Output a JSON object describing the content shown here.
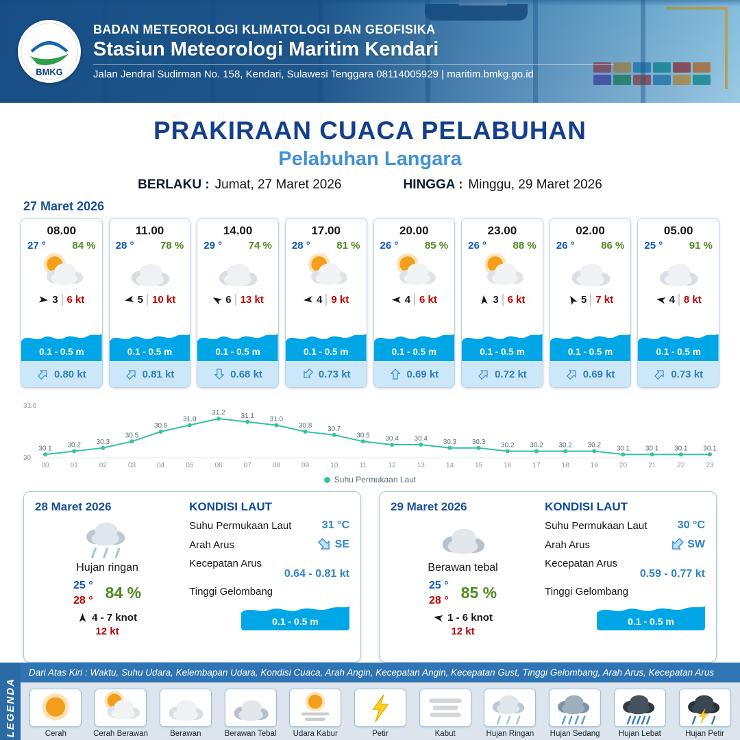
{
  "header": {
    "logo_text": "BMKG",
    "org": "BADAN METEOROLOGI KLIMATOLOGI DAN GEOFISIKA",
    "station": "Stasiun Meteorologi Maritim Kendari",
    "address": "Jalan Jendral Sudirman No. 158, Kendari, Sulawesi Tenggara  08114005929 | maritim.bmkg.go.id"
  },
  "title": {
    "main": "PRAKIRAAN CUACA PELABUHAN",
    "port": "Pelabuhan Langara",
    "valid_from_label": "BERLAKU :",
    "valid_from": "Jumat, 27 Maret 2026",
    "valid_to_label": "HINGGA :",
    "valid_to": "Minggu, 29 Maret 2026"
  },
  "forecast": {
    "date": "27 Maret 2026",
    "cards": [
      {
        "time": "08.00",
        "temp": "27 °",
        "humidity": "84 %",
        "icon": "cerah-berawan",
        "wind_speed": "3",
        "gust": "6 kt",
        "wind_rot": 95,
        "wave": "0.1 - 0.5 m",
        "current": "0.80 kt",
        "current_rot": 45
      },
      {
        "time": "11.00",
        "temp": "28 °",
        "humidity": "78 %",
        "icon": "berawan",
        "wind_speed": "5",
        "gust": "10 kt",
        "wind_rot": 260,
        "wave": "0.1 - 0.5 m",
        "current": "0.81 kt",
        "current_rot": 45
      },
      {
        "time": "14.00",
        "temp": "29 °",
        "humidity": "74 %",
        "icon": "berawan",
        "wind_speed": "6",
        "gust": "13 kt",
        "wind_rot": 300,
        "wave": "0.1 - 0.5 m",
        "current": "0.68 kt",
        "current_rot": 180
      },
      {
        "time": "17.00",
        "temp": "28 °",
        "humidity": "81 %",
        "icon": "cerah-berawan",
        "wind_speed": "4",
        "gust": "9 kt",
        "wind_rot": 265,
        "wave": "0.1 - 0.5 m",
        "current": "0.73 kt",
        "current_rot": 225
      },
      {
        "time": "20.00",
        "temp": "26 °",
        "humidity": "85 %",
        "icon": "cerah-berawan",
        "wind_speed": "4",
        "gust": "6 kt",
        "wind_rot": 270,
        "wave": "0.1 - 0.5 m",
        "current": "0.69 kt",
        "current_rot": 0
      },
      {
        "time": "23.00",
        "temp": "26 °",
        "humidity": "88 %",
        "icon": "cerah-berawan",
        "wind_speed": "3",
        "gust": "6 kt",
        "wind_rot": 355,
        "wave": "0.1 - 0.5 m",
        "current": "0.72 kt",
        "current_rot": 45
      },
      {
        "time": "02.00",
        "temp": "26 °",
        "humidity": "86 %",
        "icon": "berawan",
        "wind_speed": "5",
        "gust": "7 kt",
        "wind_rot": 330,
        "wave": "0.1 - 0.5 m",
        "current": "0.69 kt",
        "current_rot": 45
      },
      {
        "time": "05.00",
        "temp": "25 °",
        "humidity": "91 %",
        "icon": "berawan",
        "wind_speed": "4",
        "gust": "8 kt",
        "wind_rot": 280,
        "wave": "0.1 - 0.5 m",
        "current": "0.73 kt",
        "current_rot": 45
      }
    ]
  },
  "chart_data": {
    "type": "line",
    "series_name": "Suhu Permukaan Laut",
    "x": [
      "00",
      "01",
      "02",
      "03",
      "04",
      "05",
      "06",
      "07",
      "08",
      "09",
      "10",
      "11",
      "12",
      "13",
      "14",
      "15",
      "16",
      "17",
      "18",
      "19",
      "20",
      "21",
      "22",
      "23"
    ],
    "values": [
      30.1,
      30.2,
      30.3,
      30.5,
      30.8,
      31.0,
      31.2,
      31.1,
      31.0,
      30.8,
      30.7,
      30.5,
      30.4,
      30.4,
      30.3,
      30.3,
      30.2,
      30.2,
      30.2,
      30.2,
      30.1,
      30.1,
      30.1,
      30.1
    ],
    "ylim": [
      30,
      31.6
    ],
    "xlabel": "",
    "ylabel": "",
    "grid": false,
    "legend_position": "bottom",
    "line_color": "#35c2a2"
  },
  "day_cards": [
    {
      "date": "28 Maret 2026",
      "icon": "hujan-ringan",
      "condition": "Hujan ringan",
      "temp_min": "25 °",
      "temp_max": "28 °",
      "humidity": "84 %",
      "wind": "4  - 7 knot",
      "wind_rot": 0,
      "gust": "12 kt",
      "sea": {
        "heading": "KONDISI LAUT",
        "sst_label": "Suhu Permukaan Laut",
        "sst": "31 °C",
        "current_dir_label": "Arah Arus",
        "current_dir": "SE",
        "current_rot": 135,
        "current_speed_label": "Kecepatan Arus",
        "current_speed": "0.64 - 0.81 kt",
        "wave_label": "Tinggi Gelombang",
        "wave": "0.1 - 0.5 m"
      }
    },
    {
      "date": "29 Maret 2026",
      "icon": "berawan-tebal",
      "condition": "Berawan tebal",
      "temp_min": "25 °",
      "temp_max": "28 °",
      "humidity": "85 %",
      "wind": "1  - 6 knot",
      "wind_rot": 280,
      "gust": "12 kt",
      "sea": {
        "heading": "KONDISI LAUT",
        "sst_label": "Suhu Permukaan Laut",
        "sst": "30 °C",
        "current_dir_label": "Arah Arus",
        "current_dir": "SW",
        "current_rot": 225,
        "current_speed_label": "Kecepatan Arus",
        "current_speed": "0.59 - 0.77 kt",
        "wave_label": "Tinggi Gelombang",
        "wave": "0.1 - 0.5 m"
      }
    }
  ],
  "legend": {
    "title": "LEGENDA",
    "description": "Dari Atas Kiri : Waktu, Suhu Udara, Kelembapan Udara, Kondisi Cuaca, Arah Angin, Kecepatan Angin, Kecepatan Gust, Tinggi Gelombang, Arah Arus, Kecepatan Arus",
    "items": [
      {
        "icon": "cerah",
        "label": "Cerah"
      },
      {
        "icon": "cerah-berawan",
        "label": "Cerah Berawan"
      },
      {
        "icon": "berawan",
        "label": "Berawan"
      },
      {
        "icon": "berawan-tebal",
        "label": "Berawan Tebal"
      },
      {
        "icon": "udara-kabur",
        "label": "Udara Kabur"
      },
      {
        "icon": "petir",
        "label": "Petir"
      },
      {
        "icon": "kabut",
        "label": "Kabut"
      },
      {
        "icon": "hujan-ringan",
        "label": "Hujan Ringan"
      },
      {
        "icon": "hujan-sedang",
        "label": "Hujan Sedang"
      },
      {
        "icon": "hujan-lebat",
        "label": "Hujan Lebat"
      },
      {
        "icon": "hujan-petir",
        "label": "Hujan Petir"
      }
    ]
  },
  "colors": {
    "accent_dark_blue": "#143f8c",
    "accent_blue": "#4191d6",
    "temp_blue": "#0a58ca",
    "humidity_green": "#4e8a1f",
    "alert_red": "#c00000",
    "wave_blue": "#00a6e6",
    "chart_teal": "#35c2a2"
  }
}
